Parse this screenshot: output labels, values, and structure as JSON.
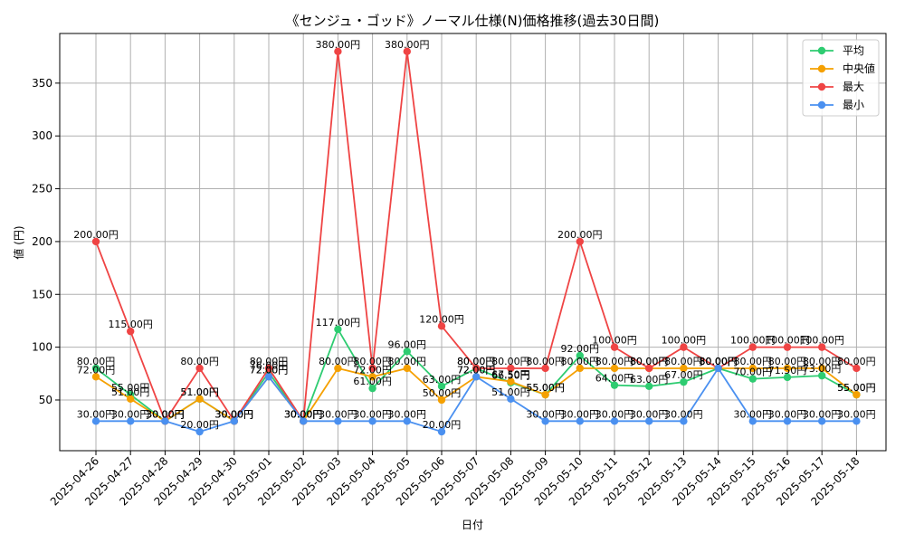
{
  "chart_data": {
    "type": "line",
    "title": "《センジュ・ゴッド》ノーマル仕様(N)価格推移(過去30日間)",
    "xlabel": "日付",
    "ylabel": "値 (円)",
    "ylim": [
      2,
      397
    ],
    "yticks": [
      50,
      100,
      150,
      200,
      250,
      300,
      350
    ],
    "grid": true,
    "legend_position": "top-right",
    "label_suffix": "円",
    "categories": [
      "2025-04-26",
      "2025-04-27",
      "2025-04-28",
      "2025-04-29",
      "2025-04-30",
      "2025-05-01",
      "2025-05-02",
      "2025-05-03",
      "2025-05-04",
      "2025-05-05",
      "2025-05-06",
      "2025-05-07",
      "2025-05-08",
      "2025-05-09",
      "2025-05-10",
      "2025-05-11",
      "2025-05-12",
      "2025-05-13",
      "2025-05-14",
      "2025-05-15",
      "2025-05-16",
      "2025-05-17",
      "2025-05-18"
    ],
    "series": [
      {
        "name": "平均",
        "color": "#2ecc71",
        "values": [
          80,
          55,
          30,
          51,
          30,
          76,
          30,
          117,
          61,
          96,
          63,
          80,
          66.5,
          55,
          92,
          64,
          63,
          67,
          80,
          70,
          71.5,
          73,
          55
        ]
      },
      {
        "name": "中央値",
        "color": "#f5a000",
        "values": [
          72,
          51,
          30,
          51,
          30,
          72,
          30,
          80,
          72,
          80,
          50,
          72,
          67.5,
          55,
          80,
          80,
          80,
          80,
          80,
          80,
          80,
          80,
          55
        ]
      },
      {
        "name": "最大",
        "color": "#ef4444",
        "values": [
          200,
          115,
          30,
          80,
          30,
          80,
          30,
          380,
          80,
          380,
          120,
          80,
          80,
          80,
          200,
          100,
          80,
          100,
          80,
          100,
          100,
          100,
          80
        ]
      },
      {
        "name": "最小",
        "color": "#4a90f0",
        "values": [
          30,
          30,
          30,
          20,
          30,
          72,
          30,
          30,
          30,
          30,
          20,
          72,
          51,
          30,
          30,
          30,
          30,
          30,
          80,
          30,
          30,
          30,
          30
        ]
      }
    ]
  }
}
